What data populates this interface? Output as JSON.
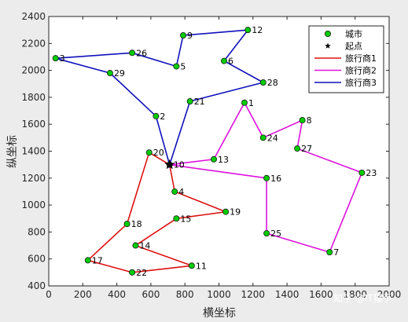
{
  "chart_data": {
    "type": "line",
    "xlabel": "横坐标",
    "ylabel": "纵坐标",
    "xlim": [
      0,
      2000
    ],
    "ylim": [
      400,
      2400
    ],
    "xticks": [
      0,
      200,
      400,
      600,
      800,
      1000,
      1200,
      1400,
      1600,
      1800,
      2000
    ],
    "yticks": [
      400,
      600,
      800,
      1000,
      1200,
      1400,
      1600,
      1800,
      2000,
      2200,
      2400
    ],
    "grid": false,
    "legend_position": "top-right",
    "legend": [
      {
        "label": "城市",
        "kind": "marker-circle",
        "color": "#00cc00"
      },
      {
        "label": "起点",
        "kind": "marker-star",
        "color": "#000000"
      },
      {
        "label": "旅行商1",
        "kind": "line",
        "color": "#dd1111"
      },
      {
        "label": "旅行商2",
        "kind": "line",
        "color": "#dd11dd"
      },
      {
        "label": "旅行商3",
        "kind": "line",
        "color": "#1111bb"
      }
    ],
    "start": {
      "label": "10",
      "x": 710,
      "y": 1300
    },
    "cities": [
      {
        "id": "1",
        "x": 1150,
        "y": 1760
      },
      {
        "id": "2",
        "x": 630,
        "y": 1660
      },
      {
        "id": "3",
        "x": 40,
        "y": 2090
      },
      {
        "id": "4",
        "x": 740,
        "y": 1100
      },
      {
        "id": "5",
        "x": 750,
        "y": 2030
      },
      {
        "id": "6",
        "x": 1030,
        "y": 2070
      },
      {
        "id": "7",
        "x": 1650,
        "y": 650
      },
      {
        "id": "8",
        "x": 1490,
        "y": 1630
      },
      {
        "id": "9",
        "x": 790,
        "y": 2260
      },
      {
        "id": "10",
        "x": 710,
        "y": 1300
      },
      {
        "id": "11",
        "x": 840,
        "y": 550
      },
      {
        "id": "12",
        "x": 1170,
        "y": 2300
      },
      {
        "id": "13",
        "x": 970,
        "y": 1340
      },
      {
        "id": "14",
        "x": 510,
        "y": 700
      },
      {
        "id": "15",
        "x": 750,
        "y": 900
      },
      {
        "id": "16",
        "x": 1280,
        "y": 1200
      },
      {
        "id": "17",
        "x": 230,
        "y": 590
      },
      {
        "id": "18",
        "x": 460,
        "y": 860
      },
      {
        "id": "19",
        "x": 1040,
        "y": 950
      },
      {
        "id": "20",
        "x": 590,
        "y": 1390
      },
      {
        "id": "21",
        "x": 830,
        "y": 1770
      },
      {
        "id": "22",
        "x": 490,
        "y": 500
      },
      {
        "id": "23",
        "x": 1840,
        "y": 1240
      },
      {
        "id": "24",
        "x": 1260,
        "y": 1500
      },
      {
        "id": "25",
        "x": 1280,
        "y": 790
      },
      {
        "id": "26",
        "x": 490,
        "y": 2130
      },
      {
        "id": "27",
        "x": 1460,
        "y": 1420
      },
      {
        "id": "28",
        "x": 1260,
        "y": 1910
      },
      {
        "id": "29",
        "x": 360,
        "y": 1980
      }
    ],
    "series": [
      {
        "name": "旅行商1",
        "color": "#dd1111",
        "route": [
          "10",
          "20",
          "18",
          "17",
          "22",
          "11",
          "14",
          "15",
          "19",
          "4",
          "10"
        ]
      },
      {
        "name": "旅行商2",
        "color": "#dd11dd",
        "route": [
          "10",
          "13",
          "1",
          "24",
          "8",
          "27",
          "23",
          "7",
          "25",
          "16",
          "10"
        ]
      },
      {
        "name": "旅行商3",
        "color": "#1111bb",
        "route": [
          "10",
          "21",
          "28",
          "6",
          "12",
          "9",
          "5",
          "26",
          "3",
          "29",
          "2",
          "10"
        ]
      }
    ]
  },
  "watermark": "知乎 @IT猿手"
}
